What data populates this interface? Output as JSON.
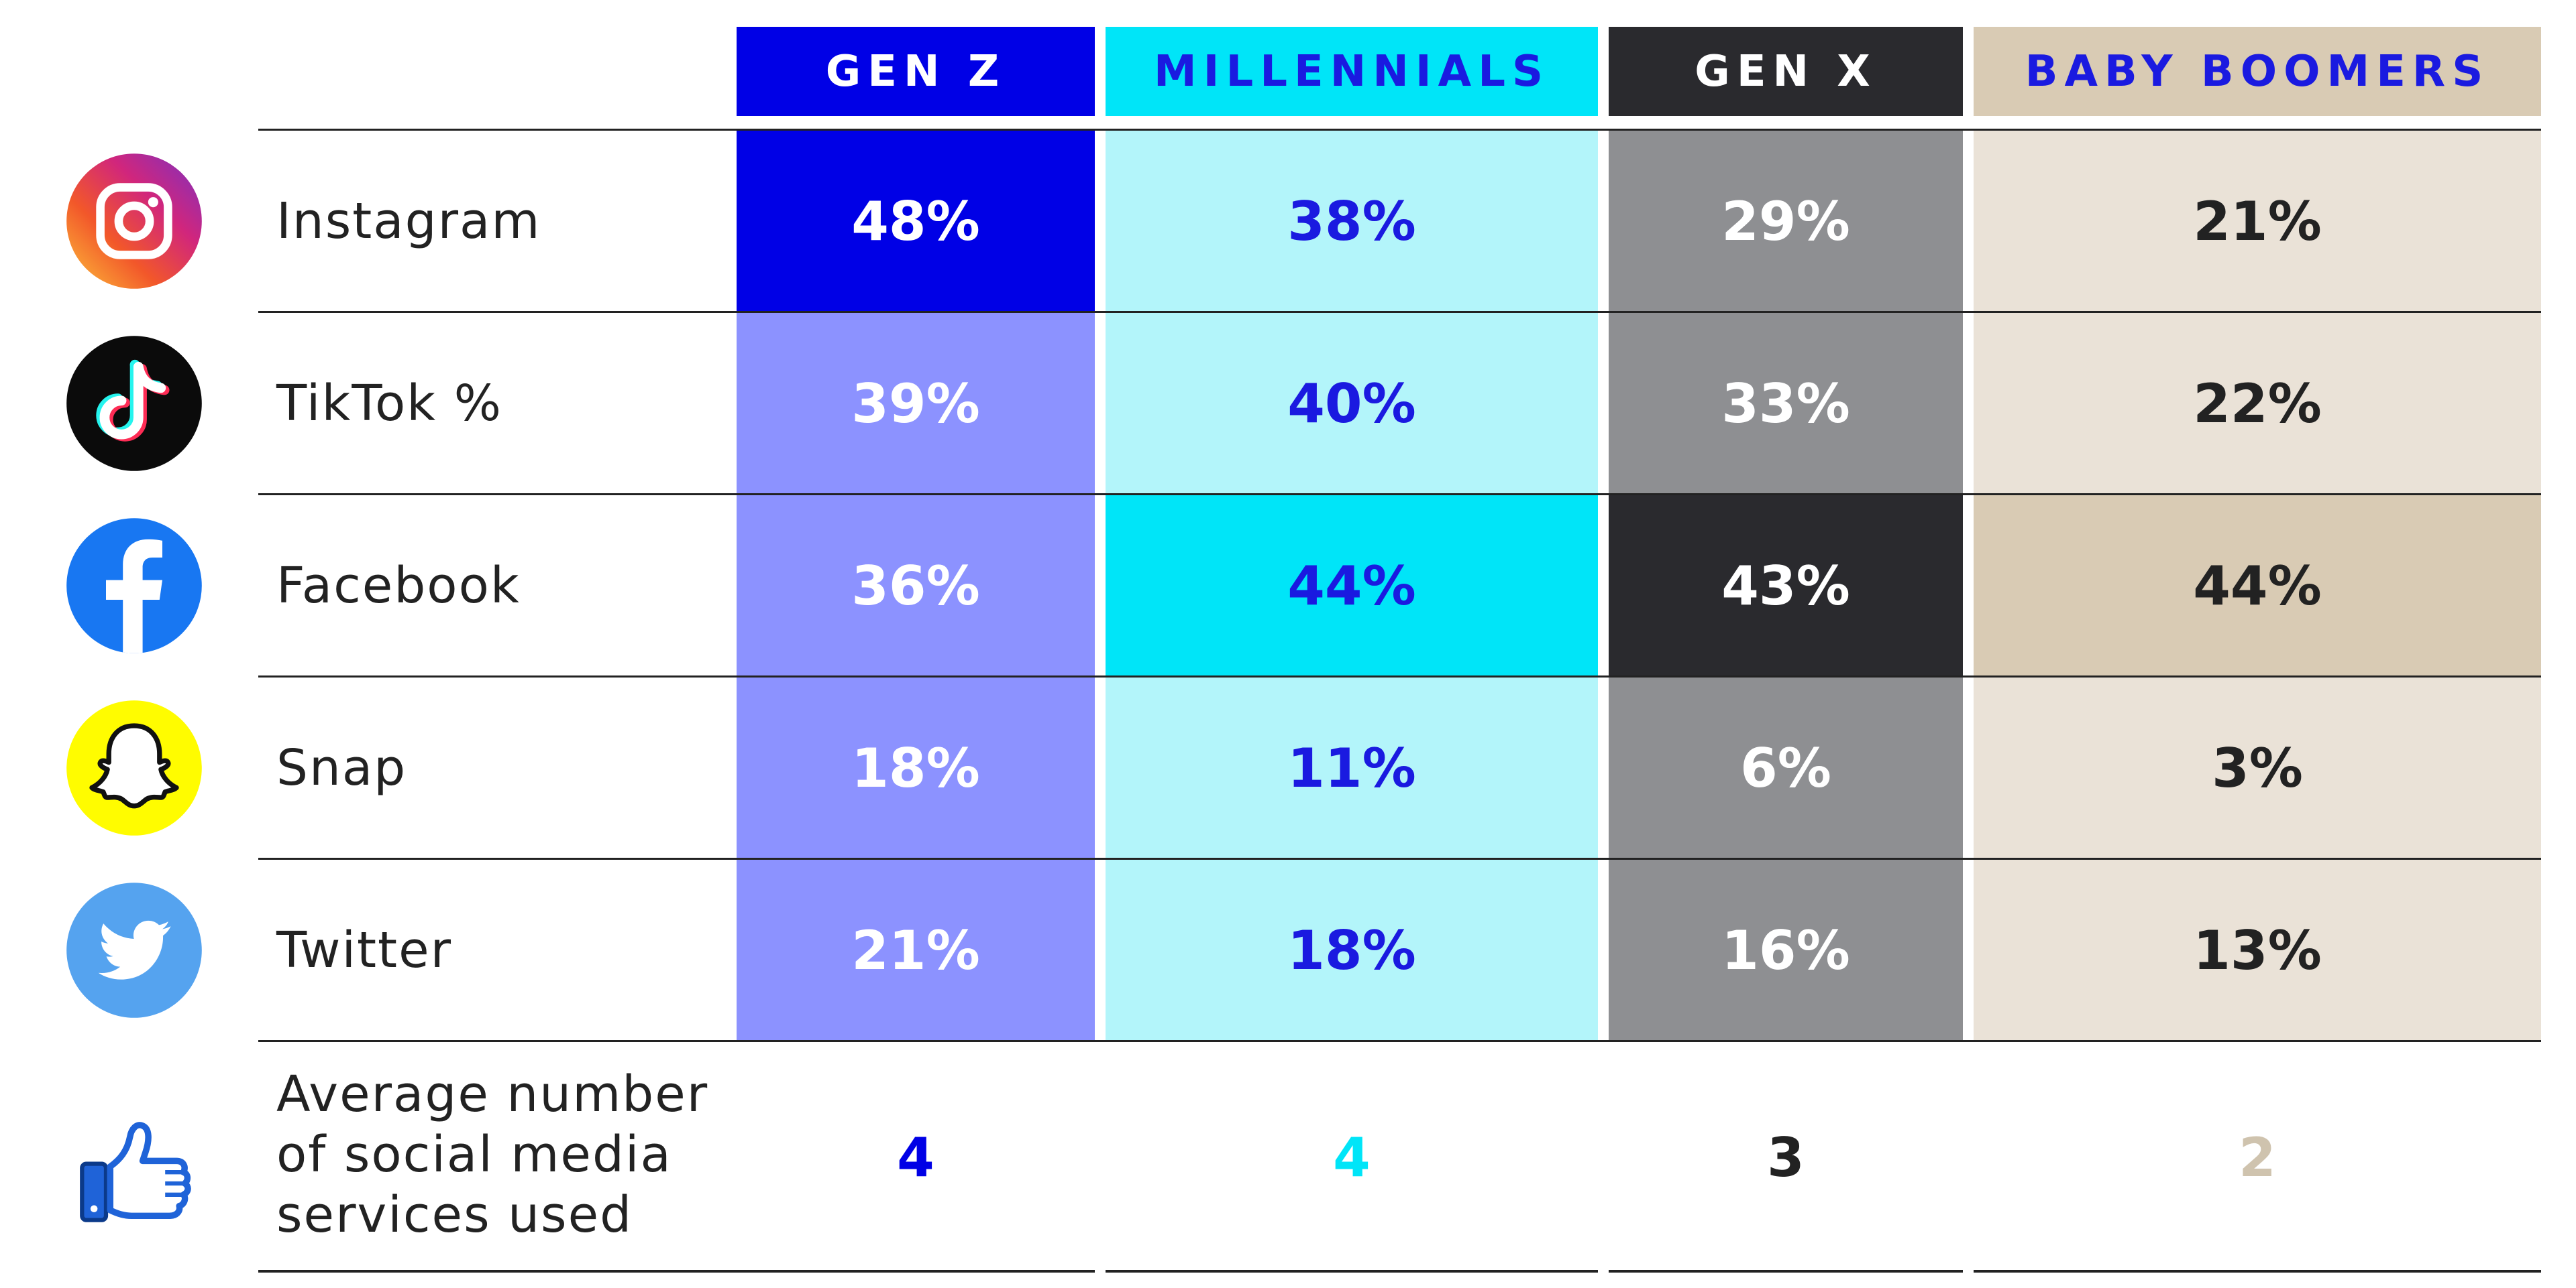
{
  "chart_data": {
    "type": "table",
    "columns": [
      {
        "label": "GEN Z",
        "header_bg": "#0000E6",
        "header_fg": "#FFFFFF",
        "accent": "#0000E6"
      },
      {
        "label": "MILLENNIALS",
        "header_bg": "#00E5F8",
        "header_fg": "#1A1AE0",
        "accent": "#00E5F8"
      },
      {
        "label": "GEN X",
        "header_bg": "#2A2A2E",
        "header_fg": "#FFFFFF",
        "accent": "#2A2A2E"
      },
      {
        "label": "BABY BOOMERS",
        "header_bg": "#D9CBB4",
        "header_fg": "#1A1AE0",
        "accent": "#CFC3AE"
      }
    ],
    "rows": [
      {
        "label": "Instagram",
        "icon": "instagram-icon",
        "values": [
          "48%",
          "38%",
          "29%",
          "21%"
        ],
        "highlight_col": 0
      },
      {
        "label": "TikTok %",
        "icon": "tiktok-icon",
        "values": [
          "39%",
          "40%",
          "33%",
          "22%"
        ],
        "highlight_col": null
      },
      {
        "label": "Facebook",
        "icon": "facebook-icon",
        "values": [
          "36%",
          "44%",
          "43%",
          "44%"
        ],
        "highlight_col": [
          1,
          2,
          3
        ]
      },
      {
        "label": "Snap",
        "icon": "snapchat-icon",
        "values": [
          "18%",
          "11%",
          "6%",
          "3%"
        ],
        "highlight_col": null
      },
      {
        "label": "Twitter",
        "icon": "twitter-icon",
        "values": [
          "21%",
          "18%",
          "16%",
          "13%"
        ],
        "highlight_col": null
      }
    ],
    "average_row": {
      "label": "Average number of social media services used",
      "icon": "thumbs-up-icon",
      "values": [
        "4",
        "4",
        "3",
        "2"
      ]
    },
    "cell_colors": {
      "gen_z": {
        "normal_bg": "#8C92FF",
        "normal_fg": "#FFFFFF",
        "highlight_bg": "#0000E6",
        "highlight_fg": "#FFFFFF"
      },
      "millennials": {
        "normal_bg": "#B3F5FA",
        "normal_fg": "#1A1AE0",
        "highlight_bg": "#00E5F8",
        "highlight_fg": "#1A1AE0"
      },
      "gen_x": {
        "normal_bg": "#8E8F92",
        "normal_fg": "#FFFFFF",
        "highlight_bg": "#2A2A2E",
        "highlight_fg": "#FFFFFF"
      },
      "boomers": {
        "normal_bg": "#EAE2D7",
        "normal_fg": "#222222",
        "highlight_bg": "#D9CBB4",
        "highlight_fg": "#222222"
      }
    }
  }
}
